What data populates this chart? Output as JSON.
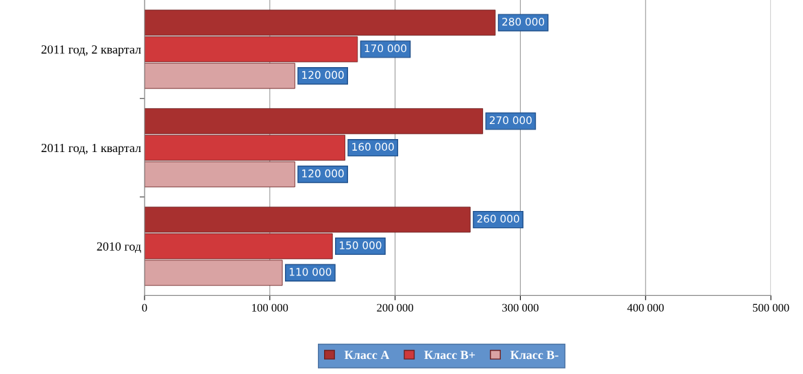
{
  "chart_data": {
    "type": "bar",
    "orientation": "horizontal",
    "categories": [
      "2011 год, 2 квартал",
      "2011 год, 1 квартал",
      "2010 год"
    ],
    "series": [
      {
        "name": "Класс А",
        "color": "#a8302f",
        "values": [
          280000,
          270000,
          260000
        ],
        "value_labels": [
          "280 000",
          "270 000",
          "260 000"
        ]
      },
      {
        "name": "Класс В+",
        "color": "#d0393b",
        "values": [
          170000,
          160000,
          150000
        ],
        "value_labels": [
          "170 000",
          "160 000",
          "150 000"
        ]
      },
      {
        "name": "Класс В-",
        "color": "#d9a3a3",
        "values": [
          120000,
          120000,
          110000
        ],
        "value_labels": [
          "120 000",
          "120 000",
          "110 000"
        ]
      }
    ],
    "xlim": [
      0,
      500000
    ],
    "xticks": [
      {
        "value": 0,
        "label": "0"
      },
      {
        "value": 100000,
        "label": "100 000"
      },
      {
        "value": 200000,
        "label": "200 000"
      },
      {
        "value": 300000,
        "label": "300 000"
      },
      {
        "value": 400000,
        "label": "400 000"
      },
      {
        "value": 500000,
        "label": "500 000"
      }
    ],
    "grid": "x",
    "legend": "bottom"
  }
}
